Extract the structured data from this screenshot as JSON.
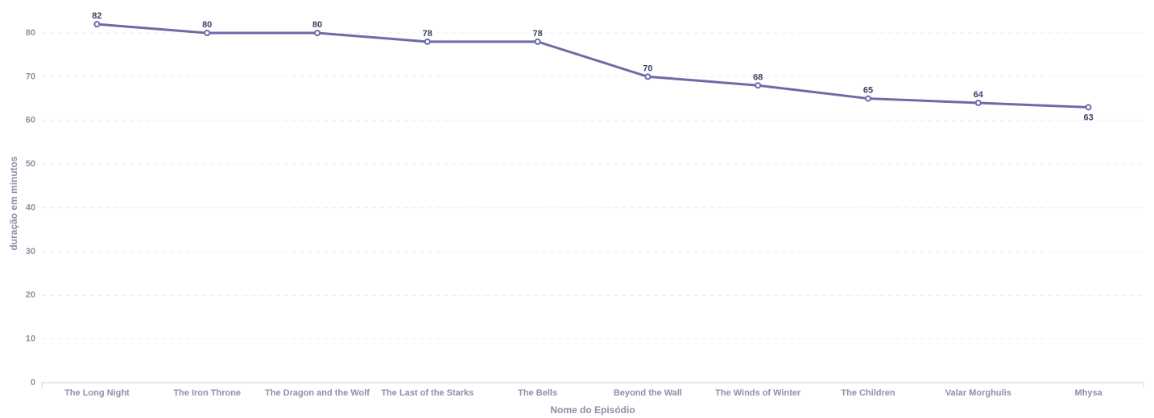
{
  "chart_data": {
    "type": "line",
    "categories": [
      "The Long Night",
      "The Iron Throne",
      "The Dragon and the Wolf",
      "The Last of the Starks",
      "The Bells",
      "Beyond the Wall",
      "The Winds of Winter",
      "The Children",
      "Valar Morghulis",
      "Mhysa"
    ],
    "series": [
      {
        "values": [
          82,
          80,
          80,
          78,
          78,
          70,
          68,
          65,
          64,
          63
        ]
      }
    ],
    "xlabel": "Nome do Episódio",
    "ylabel": "duração em minutos",
    "ylim": [
      0,
      80
    ],
    "yticks": [
      0,
      10,
      20,
      30,
      40,
      50,
      60,
      70,
      80
    ],
    "grid": true,
    "colors": {
      "series": "#6b6ba8"
    }
  }
}
